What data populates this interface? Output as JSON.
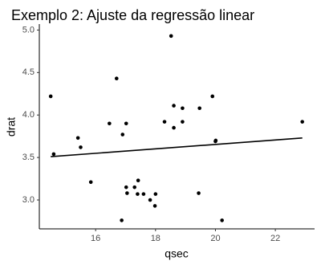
{
  "chart_data": {
    "type": "scatter",
    "title": "Exemplo 2: Ajuste da regressão linear",
    "x_label": "qsec",
    "y_label": "drat",
    "x": [
      16.46,
      17.02,
      18.61,
      19.44,
      17.02,
      20.22,
      15.84,
      20.0,
      22.9,
      18.3,
      18.9,
      17.4,
      17.6,
      18.0,
      17.98,
      17.82,
      17.42,
      19.47,
      18.52,
      19.9,
      20.01,
      16.87,
      17.3,
      15.41,
      17.05,
      18.9,
      16.7,
      16.9,
      14.5,
      15.5,
      14.6,
      18.61
    ],
    "values": [
      3.9,
      3.9,
      3.85,
      3.08,
      3.15,
      2.76,
      3.21,
      3.69,
      3.92,
      3.92,
      3.92,
      3.07,
      3.07,
      3.07,
      2.93,
      3.0,
      3.23,
      4.08,
      4.93,
      4.22,
      3.7,
      2.76,
      3.15,
      3.73,
      3.08,
      4.08,
      4.43,
      3.77,
      4.22,
      3.62,
      3.54,
      4.11
    ],
    "color": "#000000",
    "fit_line": {
      "x": [
        14.5,
        22.9
      ],
      "values": [
        3.51,
        3.73
      ],
      "color": "#000000"
    },
    "xlim": [
      14.12,
      23.31
    ],
    "xticks": [
      16,
      18,
      20,
      22
    ],
    "ylim": [
      2.66,
      5.07
    ],
    "yticks": [
      {
        "value": 3,
        "label": "3.0"
      },
      {
        "value": 3.5,
        "label": "3.5"
      },
      {
        "value": 4,
        "label": "4.0"
      },
      {
        "value": 4.5,
        "label": "4.5"
      },
      {
        "value": 5,
        "label": "5.0"
      }
    ]
  }
}
